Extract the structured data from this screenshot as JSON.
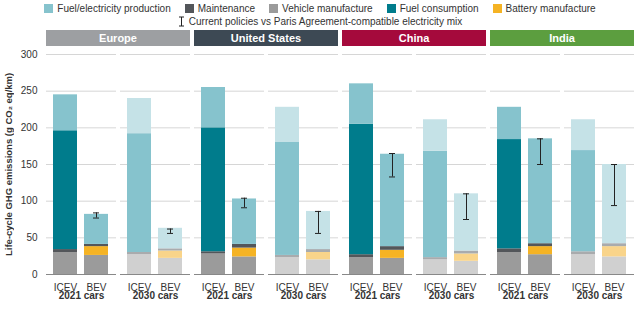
{
  "chart_data": {
    "type": "bar",
    "stacked": true,
    "grid": true,
    "y_label": "Life-cycle GHG emissions (g CO₂ eq/km)",
    "ylim": [
      0,
      300
    ],
    "yticks": [
      0,
      50,
      100,
      150,
      200,
      250,
      300
    ],
    "categories": [
      "ICEV",
      "BEV",
      "ICEV",
      "BEV",
      "ICEV",
      "BEV",
      "ICEV",
      "BEV",
      "ICEV",
      "BEV",
      "ICEV",
      "BEV",
      "ICEV",
      "BEV",
      "ICEV",
      "BEV"
    ],
    "groups": [
      "2021 cars",
      "2030 cars",
      "2021 cars",
      "2030 cars",
      "2021 cars",
      "2030 cars",
      "2021 cars",
      "2030 cars"
    ],
    "regions": [
      "Europe",
      "United States",
      "China",
      "India"
    ],
    "region_colors": [
      "#9d9fa2",
      "#3d4954",
      "#a50a3c",
      "#5c9e3f"
    ],
    "series": [
      {
        "name": "Vehicle manufacture",
        "color": "#9b9b9b",
        "colors": [
          "#9b9b9b",
          "#9b9b9b",
          "#d0d0d0",
          "#d0d0d0",
          "#9b9b9b",
          "#9b9b9b",
          "#d0d0d0",
          "#d0d0d0",
          "#9b9b9b",
          "#9b9b9b",
          "#d0d0d0",
          "#d0d0d0",
          "#9b9b9b",
          "#9b9b9b",
          "#d0d0d0",
          "#d0d0d0"
        ],
        "values": [
          30,
          26,
          27,
          22,
          28,
          24,
          23,
          20,
          23,
          22,
          20,
          18,
          30,
          27,
          27,
          24
        ]
      },
      {
        "name": "Battery manufacture",
        "color": "#f5b324",
        "colors": [
          "#f5b324",
          "#f5b324",
          "#f9d48a",
          "#f9d48a",
          "#f5b324",
          "#f5b324",
          "#f9d48a",
          "#f9d48a",
          "#f5b324",
          "#f5b324",
          "#f9d48a",
          "#f9d48a",
          "#f5b324",
          "#f5b324",
          "#f9d48a",
          "#f9d48a"
        ],
        "values": [
          null,
          12,
          null,
          10,
          null,
          12,
          null,
          10,
          null,
          11,
          null,
          10,
          null,
          11,
          null,
          14
        ]
      },
      {
        "name": "Maintenance",
        "color": "#53565a",
        "colors": [
          "#53565a",
          "#53565a",
          "#a9abad",
          "#a9abad",
          "#53565a",
          "#53565a",
          "#a9abad",
          "#a9abad",
          "#53565a",
          "#53565a",
          "#a9abad",
          "#a9abad",
          "#53565a",
          "#53565a",
          "#a9abad",
          "#a9abad"
        ],
        "values": [
          4,
          3,
          3,
          3,
          3,
          5,
          3,
          4,
          4,
          5,
          3,
          4,
          5,
          4,
          4,
          4
        ]
      },
      {
        "name": "Fuel consumption",
        "color": "#007c8c",
        "colors": [
          "#007c8c",
          "#007c8c",
          "#86c3cd",
          "#86c3cd",
          "#007c8c",
          "#007c8c",
          "#86c3cd",
          "#86c3cd",
          "#007c8c",
          "#007c8c",
          "#86c3cd",
          "#86c3cd",
          "#007c8c",
          "#007c8c",
          "#86c3cd",
          "#86c3cd"
        ],
        "values": [
          162,
          null,
          162,
          null,
          169,
          null,
          154,
          null,
          178,
          null,
          145,
          null,
          149,
          null,
          138,
          null
        ]
      },
      {
        "name": "Fuel/electricity production",
        "color": "#86c3cd",
        "colors": [
          "#86c3cd",
          "#86c3cd",
          "#c5e2e7",
          "#c5e2e7",
          "#86c3cd",
          "#86c3cd",
          "#c5e2e7",
          "#c5e2e7",
          "#86c3cd",
          "#86c3cd",
          "#c5e2e7",
          "#c5e2e7",
          "#86c3cd",
          "#86c3cd",
          "#c5e2e7",
          "#c5e2e7"
        ],
        "values": [
          49,
          41,
          48,
          28,
          55,
          62,
          48,
          52,
          55,
          126,
          43,
          78,
          44,
          143,
          42,
          108
        ]
      }
    ],
    "error_label": "Current policies vs Paris Agreement-compatible electricity mix",
    "error_low": [
      null,
      77,
      null,
      56,
      null,
      91,
      null,
      56,
      null,
      133,
      null,
      75,
      null,
      150,
      null,
      94
    ],
    "error_high": [
      null,
      84,
      null,
      62,
      null,
      104,
      null,
      86,
      null,
      165,
      null,
      110,
      null,
      185,
      null,
      150
    ]
  }
}
